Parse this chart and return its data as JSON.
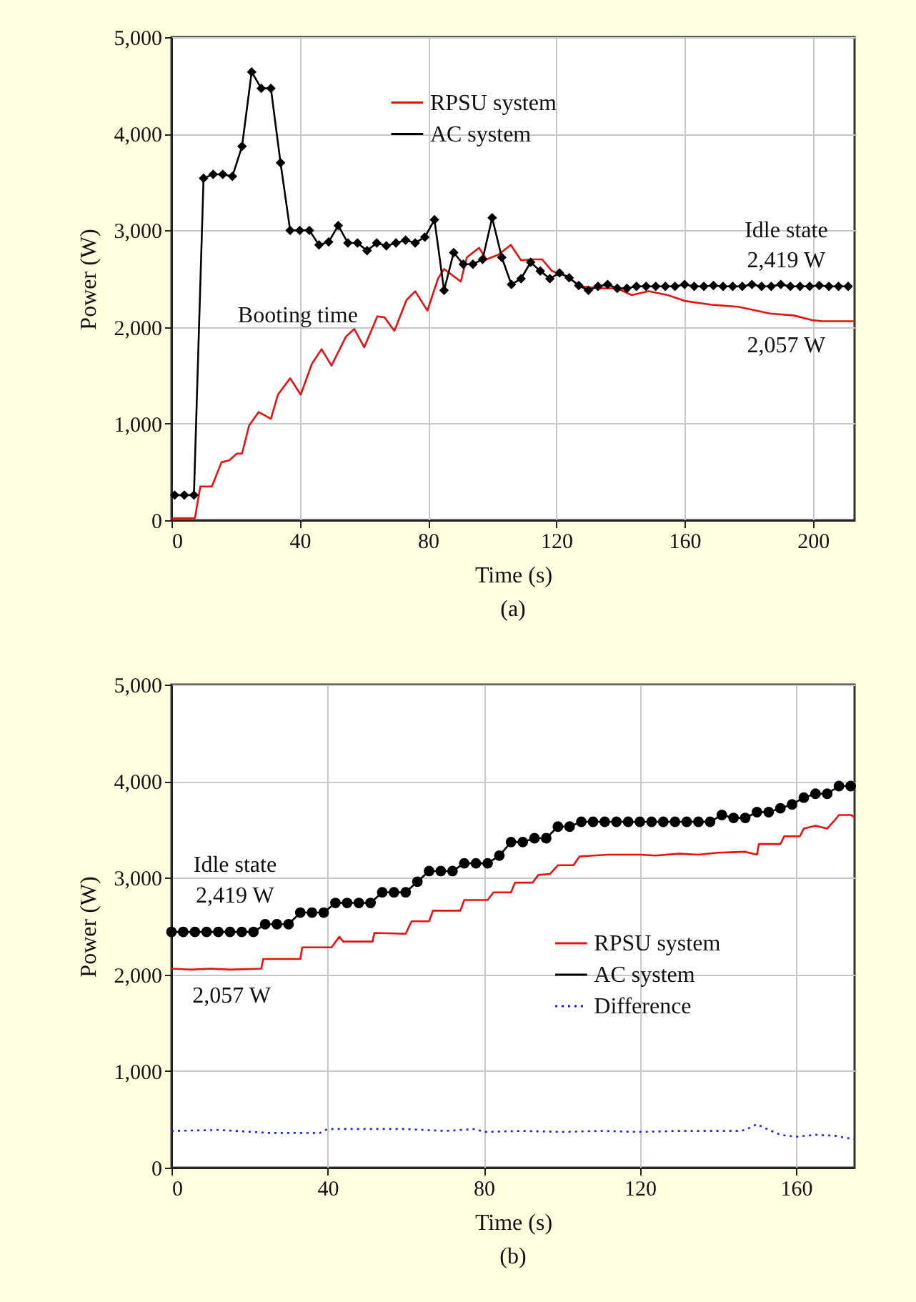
{
  "chart_data": [
    {
      "type": "line",
      "title": "(a)",
      "xlabel": "Time (s)",
      "ylabel": "Power (W)",
      "xlim": [
        0,
        213
      ],
      "ylim": [
        0,
        5000
      ],
      "xticks": [
        0,
        40,
        80,
        120,
        160,
        200
      ],
      "yticks": [
        0,
        {
          "value": 1000,
          "label": "1,000"
        },
        {
          "value": 2000,
          "label": "2,000"
        },
        {
          "value": 3000,
          "label": "3,000"
        },
        {
          "value": 4000,
          "label": "4,000"
        },
        {
          "value": 5000,
          "label": "5,000"
        }
      ],
      "grid": true,
      "legend": "top",
      "series": [
        {
          "name": "RPSU system",
          "color": "#e8110f",
          "line_style": "solid",
          "x": [
            0,
            7.3,
            9,
            12.6,
            15.6,
            18,
            20.4,
            22,
            24.2,
            27.2,
            31,
            33.2,
            37,
            40.3,
            43.8,
            46.8,
            49.9,
            54.4,
            57,
            60.1,
            64.2,
            66.4,
            69.5,
            73.3,
            76,
            79.8,
            83.1,
            85,
            90.2,
            92.1,
            95.9,
            98.2,
            102,
            105.8,
            109,
            112,
            115.6,
            118.6,
            123,
            127.6,
            133.7,
            139,
            143.5,
            148.8,
            154.8,
            160,
            168.5,
            176.7,
            186.6,
            194,
            200,
            203,
            213
          ],
          "values": [
            20,
            20,
            350,
            350,
            600,
            620,
            690,
            690,
            980,
            1120,
            1050,
            1300,
            1470,
            1300,
            1620,
            1770,
            1600,
            1900,
            1980,
            1790,
            2110,
            2100,
            1960,
            2280,
            2370,
            2170,
            2500,
            2600,
            2470,
            2720,
            2820,
            2700,
            2750,
            2850,
            2690,
            2700,
            2700,
            2580,
            2530,
            2420,
            2400,
            2400,
            2330,
            2370,
            2330,
            2270,
            2230,
            2210,
            2140,
            2120,
            2070,
            2060,
            2060
          ]
        },
        {
          "name": "AC system",
          "color": "#000000",
          "marker": "diamond",
          "line_style": "solid",
          "x": [
            1,
            4,
            7,
            10,
            13,
            16,
            19,
            22,
            25,
            28,
            31,
            34,
            37,
            40,
            43,
            46,
            49,
            52,
            55,
            58,
            61,
            64,
            67,
            70,
            73,
            76,
            79,
            82,
            85,
            88,
            91,
            94,
            97,
            100,
            103,
            106,
            109,
            112,
            115,
            118,
            121,
            124,
            127,
            130,
            133,
            136,
            139,
            142,
            145,
            148,
            151,
            154,
            157,
            160,
            163,
            166,
            169,
            172,
            175,
            178,
            181,
            184,
            187,
            190,
            193,
            196,
            199,
            202,
            205,
            208,
            211
          ],
          "values": [
            260,
            260,
            260,
            3540,
            3580,
            3580,
            3560,
            3870,
            4640,
            4470,
            4470,
            3700,
            3000,
            3000,
            3000,
            2850,
            2880,
            3050,
            2870,
            2870,
            2790,
            2870,
            2840,
            2870,
            2900,
            2870,
            2930,
            3110,
            2380,
            2770,
            2650,
            2650,
            2700,
            3130,
            2720,
            2440,
            2500,
            2670,
            2580,
            2500,
            2560,
            2510,
            2430,
            2380,
            2420,
            2440,
            2400,
            2400,
            2420,
            2420,
            2420,
            2420,
            2420,
            2440,
            2420,
            2420,
            2430,
            2420,
            2420,
            2420,
            2440,
            2420,
            2420,
            2440,
            2420,
            2420,
            2420,
            2430,
            2420,
            2420,
            2420
          ]
        }
      ],
      "annotations": [
        "Booting time",
        "Idle state",
        "2,419 W",
        "2,057 W"
      ]
    },
    {
      "type": "line",
      "title": "(b)",
      "xlabel": "Time (s)",
      "ylabel": "Power (W)",
      "xlim": [
        0,
        175
      ],
      "ylim": [
        0,
        5000
      ],
      "xticks": [
        0,
        40,
        80,
        120,
        160
      ],
      "yticks": [
        0,
        {
          "value": 1000,
          "label": "1,000"
        },
        {
          "value": 2000,
          "label": "2,000"
        },
        {
          "value": 3000,
          "label": "3,000"
        },
        {
          "value": 4000,
          "label": "4,000"
        },
        {
          "value": 5000,
          "label": "5,000"
        }
      ],
      "grid": true,
      "legend": "right",
      "series": [
        {
          "name": "RPSU system",
          "color": "#e8110f",
          "line_style": "solid",
          "x": [
            0,
            5,
            10,
            15,
            23,
            23.5,
            33,
            33.5,
            41,
            43,
            44,
            51.5,
            52,
            60,
            61.5,
            66,
            67,
            74,
            75,
            81,
            82.5,
            87,
            88,
            92.5,
            94,
            97,
            99,
            103,
            104.5,
            108,
            112,
            120,
            124,
            130,
            135,
            140,
            147,
            150,
            150.5,
            156,
            157,
            161,
            162,
            165,
            168,
            170,
            171,
            174,
            175
          ],
          "values": [
            2060,
            2050,
            2060,
            2050,
            2060,
            2160,
            2160,
            2280,
            2280,
            2390,
            2340,
            2340,
            2430,
            2420,
            2550,
            2550,
            2660,
            2660,
            2770,
            2770,
            2850,
            2850,
            2950,
            2950,
            3030,
            3040,
            3130,
            3130,
            3220,
            3230,
            3240,
            3240,
            3230,
            3250,
            3240,
            3260,
            3270,
            3240,
            3350,
            3350,
            3430,
            3430,
            3510,
            3540,
            3510,
            3600,
            3650,
            3650,
            3630
          ]
        },
        {
          "name": "AC system",
          "color": "#000000",
          "marker": "circle",
          "line_style": "solid",
          "x": [
            0,
            3,
            6,
            9,
            12,
            15,
            18,
            21,
            24,
            27,
            30,
            33,
            36,
            39,
            42,
            45,
            48,
            51,
            54,
            57,
            60,
            63,
            66,
            69,
            72,
            75,
            78,
            81,
            84,
            87,
            90,
            93,
            96,
            99,
            102,
            105,
            108,
            111,
            114,
            117,
            120,
            123,
            126,
            129,
            132,
            135,
            138,
            141,
            144,
            147,
            150,
            153,
            156,
            159,
            162,
            165,
            168,
            171,
            174
          ],
          "values": [
            2440,
            2440,
            2440,
            2440,
            2440,
            2440,
            2440,
            2440,
            2520,
            2520,
            2520,
            2640,
            2640,
            2640,
            2740,
            2740,
            2740,
            2740,
            2850,
            2850,
            2850,
            2960,
            3070,
            3070,
            3070,
            3150,
            3150,
            3150,
            3230,
            3370,
            3370,
            3410,
            3410,
            3530,
            3530,
            3580,
            3580,
            3580,
            3580,
            3580,
            3580,
            3580,
            3580,
            3580,
            3580,
            3580,
            3580,
            3650,
            3620,
            3620,
            3680,
            3680,
            3720,
            3760,
            3830,
            3870,
            3870,
            3950,
            3950
          ]
        },
        {
          "name": "Difference",
          "color": "#1a1aff",
          "line_style": "dotted",
          "x": [
            0,
            12,
            25,
            38,
            40,
            50,
            60,
            70,
            78,
            80,
            90,
            100,
            110,
            120,
            130,
            140,
            146,
            148,
            150,
            152,
            156,
            160,
            165,
            170,
            174,
            175
          ],
          "values": [
            380,
            390,
            360,
            360,
            400,
            400,
            400,
            380,
            400,
            370,
            380,
            370,
            380,
            370,
            380,
            380,
            380,
            410,
            450,
            410,
            340,
            320,
            340,
            330,
            300,
            290
          ]
        }
      ],
      "annotations": [
        "Idle state",
        "2,419 W",
        "2,057 W"
      ]
    }
  ]
}
